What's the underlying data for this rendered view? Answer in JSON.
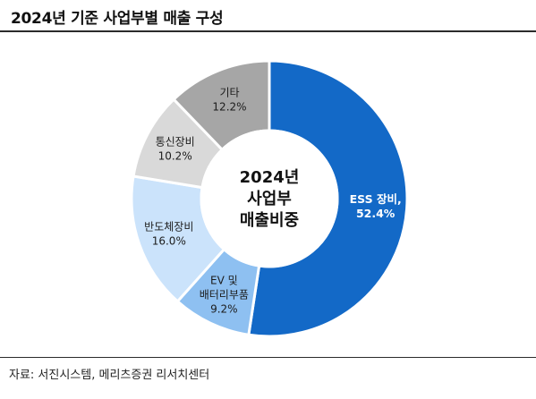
{
  "header": {
    "title": "2024년 기준 사업부별 매출 구성"
  },
  "footer": {
    "source": "자료: 서진시스템, 메리츠증권 리서치센터"
  },
  "colors": {
    "ess": "#1369c7",
    "ev": "#8ec0f1",
    "semi": "#cbe3fb",
    "telecom": "#d9d9d9",
    "other": "#a6a6a6"
  },
  "chart_data": {
    "type": "pie",
    "donut": true,
    "center_text": [
      "2024년",
      "사업부",
      "매출비중"
    ],
    "slices": [
      {
        "label_lines": [
          "ESS 장비,",
          "52.4%"
        ],
        "value": 52.4,
        "color": "#1369c7",
        "text": "light"
      },
      {
        "label_lines": [
          "EV 및",
          "배터리부품",
          "9.2%"
        ],
        "value": 9.2,
        "color": "#8ec0f1",
        "text": "dark"
      },
      {
        "label_lines": [
          "반도체장비",
          "16.0%"
        ],
        "value": 16.0,
        "color": "#cbe3fb",
        "text": "dark"
      },
      {
        "label_lines": [
          "통신장비",
          "10.2%"
        ],
        "value": 10.2,
        "color": "#d9d9d9",
        "text": "dark"
      },
      {
        "label_lines": [
          "기타",
          "12.2%"
        ],
        "value": 12.2,
        "color": "#a6a6a6",
        "text": "dark"
      }
    ]
  }
}
